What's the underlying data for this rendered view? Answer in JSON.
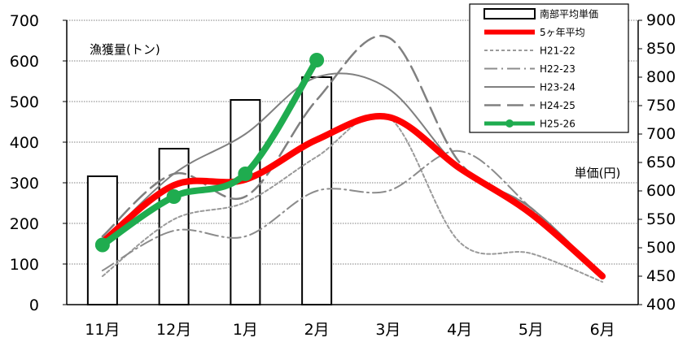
{
  "chart_data": {
    "type": "bar+line",
    "categories": [
      "11月",
      "12月",
      "1月",
      "2月",
      "3月",
      "4月",
      "5月",
      "6月"
    ],
    "left_axis": {
      "label": "漁獲量(トン)",
      "ylim": [
        0,
        700
      ],
      "ticks": [
        0,
        100,
        200,
        300,
        400,
        500,
        600,
        700
      ]
    },
    "right_axis": {
      "label": "単価(円)",
      "ylim": [
        400,
        900
      ],
      "ticks": [
        400,
        450,
        500,
        550,
        600,
        650,
        700,
        750,
        800,
        850,
        900
      ]
    },
    "bars": {
      "name": "南部平均単価",
      "axis": "left",
      "values": [
        316,
        384,
        504,
        560,
        null,
        null,
        null,
        null
      ]
    },
    "series": [
      {
        "name": "5ヶ年平均",
        "axis": "right",
        "style": "red-thick",
        "color": "#ff0000",
        "values": [
          510,
          610,
          620,
          690,
          730,
          640,
          560,
          450
        ]
      },
      {
        "name": "H21-22",
        "axis": "right",
        "style": "short-dash",
        "color": "#999999",
        "values": [
          450,
          550,
          580,
          660,
          730,
          510,
          490,
          440
        ]
      },
      {
        "name": "H22-23",
        "axis": "right",
        "style": "dash-dot",
        "color": "#888888",
        "values": [
          460,
          530,
          520,
          600,
          600,
          670,
          570,
          450
        ]
      },
      {
        "name": "H23-24",
        "axis": "right",
        "style": "solid-thin",
        "color": "#808080",
        "values": [
          510,
          630,
          700,
          800,
          780,
          640,
          570,
          450
        ]
      },
      {
        "name": "H24-25",
        "axis": "right",
        "style": "long-dash",
        "color": "#808080",
        "values": [
          520,
          630,
          590,
          760,
          870,
          650,
          570,
          450
        ]
      },
      {
        "name": "H25-26",
        "axis": "right",
        "style": "green-markers",
        "color": "#1fac4f",
        "values": [
          505,
          590,
          630,
          830,
          null,
          null,
          null,
          null
        ]
      }
    ],
    "grid": "horizontal",
    "legend_position": "top-right"
  }
}
